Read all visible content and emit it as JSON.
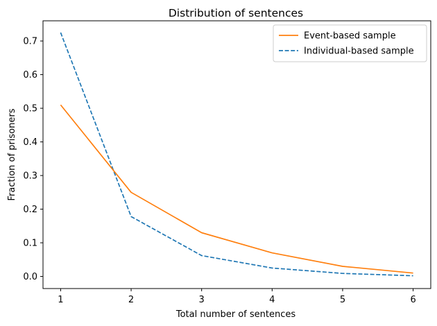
{
  "chart_data": {
    "type": "line",
    "title": "Distribution of sentences",
    "xlabel": "Total number of sentences",
    "ylabel": "Fraction of prisoners",
    "x": [
      1,
      2,
      3,
      4,
      5,
      6
    ],
    "xlim": [
      0.75,
      6.25
    ],
    "ylim": [
      -0.036,
      0.76
    ],
    "xticks": [
      1,
      2,
      3,
      4,
      5,
      6
    ],
    "yticks": [
      0.0,
      0.1,
      0.2,
      0.3,
      0.4,
      0.5,
      0.6,
      0.7
    ],
    "ytick_labels": [
      "0.0",
      "0.1",
      "0.2",
      "0.3",
      "0.4",
      "0.5",
      "0.6",
      "0.7"
    ],
    "grid": false,
    "legend_position": "top-right",
    "series": [
      {
        "name": "Event-based sample",
        "values": [
          0.51,
          0.25,
          0.13,
          0.07,
          0.03,
          0.01
        ],
        "color": "#ff7f0e",
        "style": "solid"
      },
      {
        "name": "Individual-based sample",
        "values": [
          0.725,
          0.178,
          0.062,
          0.025,
          0.009,
          0.002
        ],
        "color": "#1f77b4",
        "style": "dashed"
      }
    ]
  }
}
